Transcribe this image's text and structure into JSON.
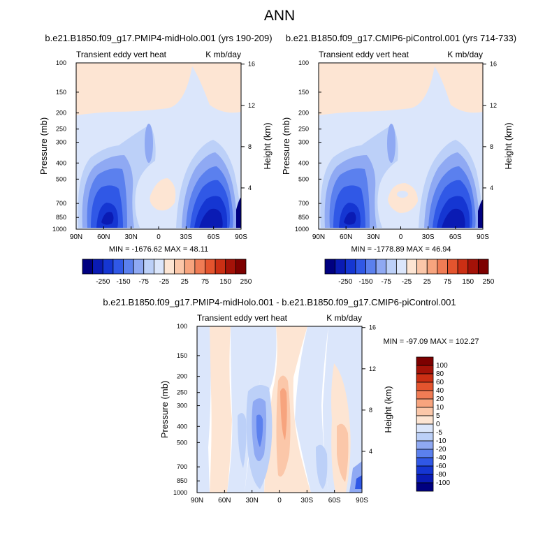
{
  "page_title": "ANN",
  "colors": {
    "neg": [
      "#000080",
      "#0a1bb4",
      "#1536d2",
      "#3058e6",
      "#5b80ee",
      "#8fa9f3",
      "#bcd0f8",
      "#dbe6fb"
    ],
    "pos": [
      "#fde5d3",
      "#fbc7a9",
      "#f7a47e",
      "#f07c55",
      "#e4542e",
      "#cb2f14",
      "#a41208",
      "#7d0000"
    ],
    "contour_line": "#7a7a7a"
  },
  "chart_data": [
    {
      "id": "plot1",
      "type": "contour",
      "title": "b.e21.B1850.f09_g17.PMIP4-midHolo.001 (yrs 190-209)",
      "left_label": "Transient eddy vert heat",
      "right_label": "K mb/day",
      "ylabel": "Pressure (mb)",
      "ylabel_right": "Height (km)",
      "xticks": [
        "90N",
        "60N",
        "30N",
        "0",
        "30S",
        "60S",
        "90S"
      ],
      "yticks": [
        "100",
        "150",
        "200",
        "250",
        "300",
        "400",
        "500",
        "700",
        "850",
        "1000"
      ],
      "ytick_values": [
        100,
        150,
        200,
        250,
        300,
        400,
        500,
        700,
        850,
        1000
      ],
      "height_ticks": [
        "4",
        "8",
        "12",
        "16"
      ],
      "height_values": [
        4,
        8,
        12,
        16
      ],
      "min_max": "MIN = -1676.62  MAX = 48.11",
      "colorbar_labels": [
        "-250",
        "-150",
        "-75",
        "-25",
        "25",
        "75",
        "150",
        "250"
      ]
    },
    {
      "id": "plot2",
      "type": "contour",
      "title": "b.e21.B1850.f09_g17.CMIP6-piControl.001 (yrs 714-733)",
      "left_label": "Transient eddy vert heat",
      "right_label": "K mb/day",
      "ylabel": "Pressure (mb)",
      "ylabel_right": "Height (km)",
      "xticks": [
        "90N",
        "60N",
        "30N",
        "0",
        "30S",
        "60S",
        "90S"
      ],
      "yticks": [
        "100",
        "150",
        "200",
        "250",
        "300",
        "400",
        "500",
        "700",
        "850",
        "1000"
      ],
      "ytick_values": [
        100,
        150,
        200,
        250,
        300,
        400,
        500,
        700,
        850,
        1000
      ],
      "height_ticks": [
        "4",
        "8",
        "12",
        "16"
      ],
      "height_values": [
        4,
        8,
        12,
        16
      ],
      "min_max": "MIN = -1778.89  MAX = 46.94",
      "colorbar_labels": [
        "-250",
        "-150",
        "-75",
        "-25",
        "25",
        "75",
        "150",
        "250"
      ]
    },
    {
      "id": "plot3",
      "type": "contour",
      "title": "b.e21.B1850.f09_g17.PMIP4-midHolo.001 - b.e21.B1850.f09_g17.CMIP6-piControl.001",
      "left_label": "Transient eddy vert heat",
      "right_label": "K mb/day",
      "ylabel": "Pressure (mb)",
      "ylabel_right": "Height (km)",
      "xticks": [
        "90N",
        "60N",
        "30N",
        "0",
        "30S",
        "60S",
        "90S"
      ],
      "yticks": [
        "100",
        "150",
        "200",
        "250",
        "300",
        "400",
        "500",
        "700",
        "850",
        "1000"
      ],
      "ytick_values": [
        100,
        150,
        200,
        250,
        300,
        400,
        500,
        700,
        850,
        1000
      ],
      "height_ticks": [
        "4",
        "8",
        "12",
        "16"
      ],
      "height_values": [
        4,
        8,
        12,
        16
      ],
      "min_max": "MIN = -97.09  MAX = 102.27",
      "colorbar_labels": [
        "100",
        "80",
        "60",
        "40",
        "20",
        "10",
        "5",
        "0",
        "-5",
        "-10",
        "-20",
        "-40",
        "-60",
        "-80",
        "-100"
      ]
    }
  ]
}
